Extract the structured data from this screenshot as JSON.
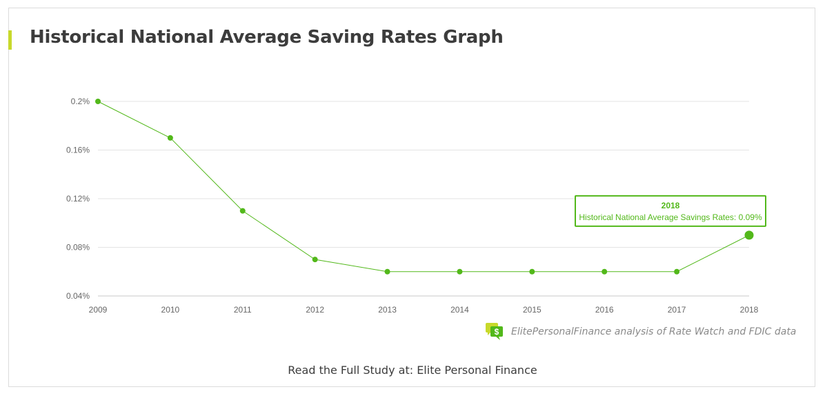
{
  "page": {
    "title": "Historical National Average Saving Rates Graph",
    "source_note": "ElitePersonalFinance analysis of Rate Watch and FDIC data",
    "footer": "Read the Full Study at: Elite Personal Finance",
    "accent_color": "#c8d92b",
    "line_color": "#52b81a"
  },
  "chart_data": {
    "type": "line",
    "title": "Historical National Average Saving Rates Graph",
    "xlabel": "",
    "ylabel": "",
    "categories": [
      "2009",
      "2010",
      "2011",
      "2012",
      "2013",
      "2014",
      "2015",
      "2016",
      "2017",
      "2018"
    ],
    "series": [
      {
        "name": "Historical National Average Savings Rates",
        "values": [
          0.2,
          0.17,
          0.11,
          0.07,
          0.06,
          0.06,
          0.06,
          0.06,
          0.06,
          0.09
        ],
        "color": "#52b81a"
      }
    ],
    "ylim": [
      0.04,
      0.2
    ],
    "y_ticks": [
      0.04,
      0.08,
      0.12,
      0.16,
      0.2
    ],
    "y_tick_labels": [
      "0.04%",
      "0.08%",
      "0.12%",
      "0.16%",
      "0.2%"
    ],
    "grid": true,
    "tooltip": {
      "title": "2018",
      "text": "Historical National Average Savings Rates: 0.09%"
    }
  }
}
